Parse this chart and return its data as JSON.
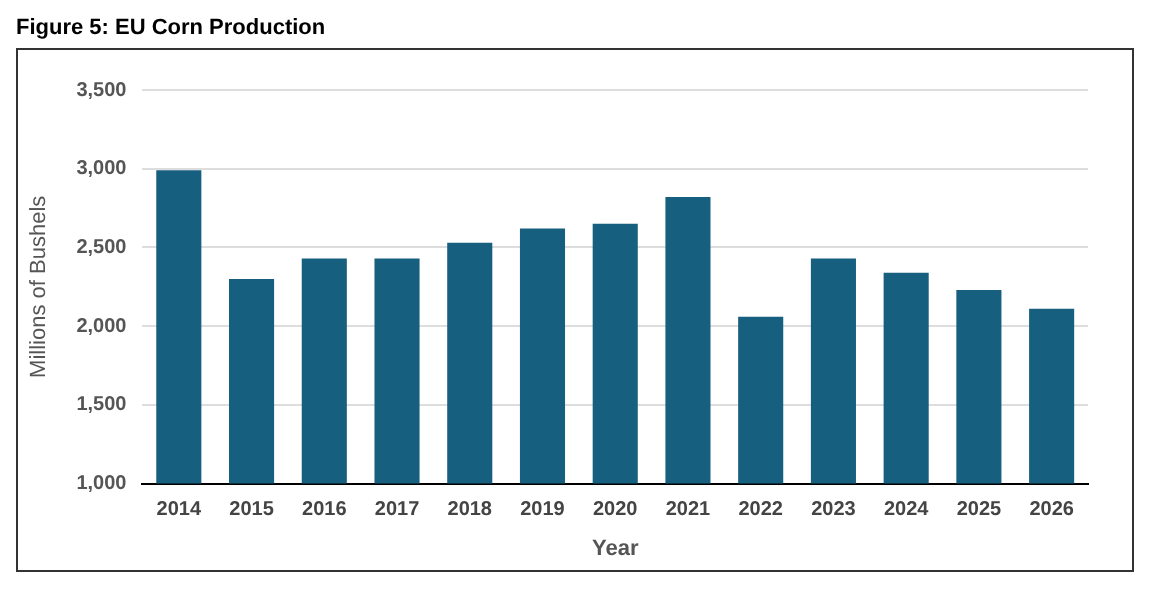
{
  "chart_data": {
    "type": "bar",
    "title": "Figure 5: EU Corn Production",
    "xlabel": "Year",
    "ylabel": "Millions of Bushels",
    "categories": [
      "2014",
      "2015",
      "2016",
      "2017",
      "2018",
      "2019",
      "2020",
      "2021",
      "2022",
      "2023",
      "2024",
      "2025",
      "2026"
    ],
    "values": [
      2990,
      2300,
      2430,
      2430,
      2530,
      2620,
      2650,
      2820,
      2060,
      2430,
      2340,
      2230,
      2110
    ],
    "color": "#175f7f",
    "ylim": [
      1000,
      3500
    ],
    "yticks": [
      {
        "value": 1000,
        "label": "1,000"
      },
      {
        "value": 1500,
        "label": "1,500"
      },
      {
        "value": 2000,
        "label": "2,000"
      },
      {
        "value": 2500,
        "label": "2,500"
      },
      {
        "value": 3000,
        "label": "3,000"
      },
      {
        "value": 3500,
        "label": "3,500"
      }
    ],
    "grid": "y",
    "legend": false
  }
}
